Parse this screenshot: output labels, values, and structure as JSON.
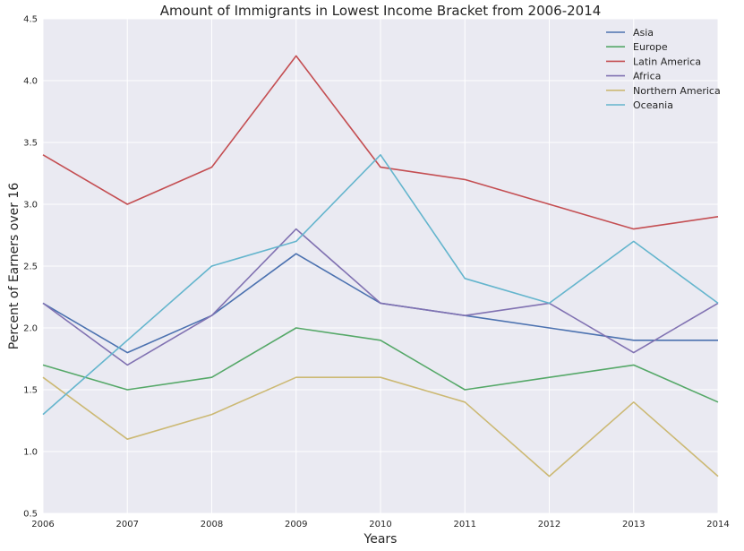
{
  "chart_data": {
    "type": "line",
    "title": "Amount of Immigrants in Lowest Income Bracket from 2006-2014",
    "xlabel": "Years",
    "ylabel": "Percent of Earners over 16",
    "x": [
      2006,
      2007,
      2008,
      2009,
      2010,
      2011,
      2012,
      2013,
      2014
    ],
    "x_tick_labels": [
      "2006",
      "2007",
      "2008",
      "2009",
      "2010",
      "2011",
      "2012",
      "2013",
      "2014"
    ],
    "xlim": [
      2006,
      2014
    ],
    "ylim": [
      0.5,
      4.5
    ],
    "y_tick_values": [
      0.5,
      1.0,
      1.5,
      2.0,
      2.5,
      3.0,
      3.5,
      4.0,
      4.5
    ],
    "y_tick_labels": [
      "0.5",
      "1.0",
      "1.5",
      "2.0",
      "2.5",
      "3.0",
      "3.5",
      "4.0",
      "4.5"
    ],
    "grid": true,
    "legend_position": "top-right",
    "series": [
      {
        "name": "Asia",
        "color": "#4c72b0",
        "values": [
          2.2,
          1.8,
          2.1,
          2.6,
          2.2,
          2.1,
          2.0,
          1.9,
          1.9
        ]
      },
      {
        "name": "Europe",
        "color": "#55a868",
        "values": [
          1.7,
          1.5,
          1.6,
          2.0,
          1.9,
          1.5,
          1.6,
          1.7,
          1.4
        ]
      },
      {
        "name": "Latin America",
        "color": "#c44e52",
        "values": [
          3.4,
          3.0,
          3.3,
          4.2,
          3.3,
          3.2,
          3.0,
          2.8,
          2.9
        ]
      },
      {
        "name": "Africa",
        "color": "#8172b2",
        "values": [
          2.2,
          1.7,
          2.1,
          2.8,
          2.2,
          2.1,
          2.2,
          1.8,
          2.2
        ]
      },
      {
        "name": "Northern America",
        "color": "#ccb974",
        "values": [
          1.6,
          1.1,
          1.3,
          1.6,
          1.6,
          1.4,
          0.8,
          1.4,
          0.8
        ]
      },
      {
        "name": "Oceania",
        "color": "#64b5cd",
        "values": [
          1.3,
          1.9,
          2.5,
          2.7,
          3.4,
          2.4,
          2.2,
          2.7,
          2.2
        ]
      }
    ]
  }
}
